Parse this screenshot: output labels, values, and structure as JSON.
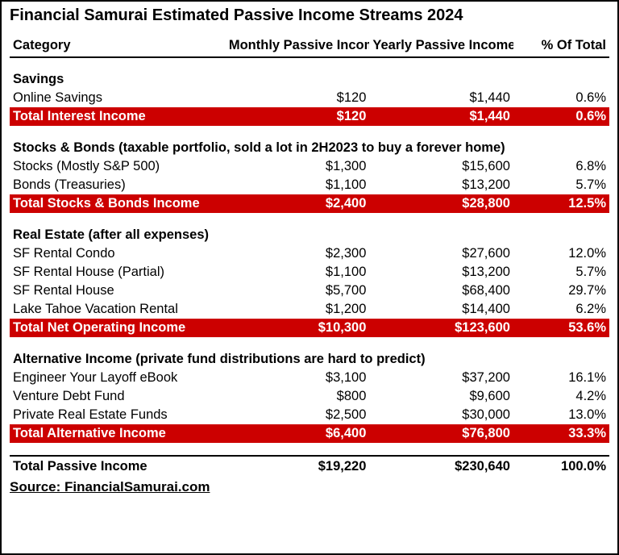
{
  "title": "Financial Samurai Estimated Passive Income Streams 2024",
  "columns": {
    "category": "Category",
    "monthly": "Monthly Passive Income",
    "yearly": "Yearly Passive Income",
    "pct": "% Of Total"
  },
  "sections": [
    {
      "heading": "Savings",
      "rows": [
        {
          "label": "Online Savings",
          "monthly": "$120",
          "yearly": "$1,440",
          "pct": "0.6%"
        }
      ],
      "subtotal": {
        "label": "Total Interest Income",
        "monthly": "$120",
        "yearly": "$1,440",
        "pct": "0.6%"
      }
    },
    {
      "heading": "Stocks & Bonds (taxable portfolio, sold a lot in 2H2023 to buy a forever home)",
      "rows": [
        {
          "label": "Stocks (Mostly S&P 500)",
          "monthly": "$1,300",
          "yearly": "$15,600",
          "pct": "6.8%"
        },
        {
          "label": "Bonds (Treasuries)",
          "monthly": "$1,100",
          "yearly": "$13,200",
          "pct": "5.7%"
        }
      ],
      "subtotal": {
        "label": "Total Stocks & Bonds Income",
        "monthly": "$2,400",
        "yearly": "$28,800",
        "pct": "12.5%"
      }
    },
    {
      "heading": "Real Estate (after all expenses)",
      "rows": [
        {
          "label": "SF Rental Condo",
          "monthly": "$2,300",
          "yearly": "$27,600",
          "pct": "12.0%"
        },
        {
          "label": "SF Rental House (Partial)",
          "monthly": "$1,100",
          "yearly": "$13,200",
          "pct": "5.7%"
        },
        {
          "label": "SF Rental House",
          "monthly": "$5,700",
          "yearly": "$68,400",
          "pct": "29.7%"
        },
        {
          "label": "Lake Tahoe Vacation Rental",
          "monthly": "$1,200",
          "yearly": "$14,400",
          "pct": "6.2%"
        }
      ],
      "subtotal": {
        "label": "Total Net Operating Income",
        "monthly": "$10,300",
        "yearly": "$123,600",
        "pct": "53.6%"
      }
    },
    {
      "heading": "Alternative Income (private fund distributions are hard to predict)",
      "rows": [
        {
          "label": "Engineer Your Layoff eBook",
          "monthly": "$3,100",
          "yearly": "$37,200",
          "pct": "16.1%"
        },
        {
          "label": "Venture Debt Fund",
          "monthly": "$800",
          "yearly": "$9,600",
          "pct": "4.2%"
        },
        {
          "label": "Private Real Estate Funds",
          "monthly": "$2,500",
          "yearly": "$30,000",
          "pct": "13.0%"
        }
      ],
      "subtotal": {
        "label": "Total Alternative Income",
        "monthly": "$6,400",
        "yearly": "$76,800",
        "pct": "33.3%"
      }
    }
  ],
  "grand_total": {
    "label": "Total Passive Income",
    "monthly": "$19,220",
    "yearly": "$230,640",
    "pct": "100.0%"
  },
  "source": "Source: FinancialSamurai.com",
  "style": {
    "subtotal_bg": "#cc0000",
    "subtotal_fg": "#ffffff",
    "border_color": "#000000",
    "font_family": "Arial, Helvetica, sans-serif"
  }
}
